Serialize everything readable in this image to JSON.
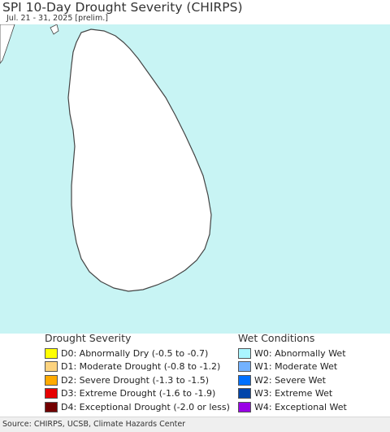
{
  "title": "SPI 10-Day Drought Severity (CHIRPS)",
  "subtitle": "Jul. 21 - 31, 2025 [prelim.]",
  "map": {
    "region": "Sri Lanka",
    "colors": {
      "sea": "#c8f4f4",
      "land": "#ffffff",
      "outline": "#444444",
      "district_border": "#888888",
      "neighbor_land": "#ffffff"
    }
  },
  "drought_legend": {
    "heading": "Drought Severity",
    "items": [
      {
        "label": "D0: Abnormally Dry (-0.5 to -0.7)",
        "color": "#ffff00"
      },
      {
        "label": "D1: Moderate Drought (-0.8 to -1.2)",
        "color": "#fcd37f"
      },
      {
        "label": "D2: Severe Drought (-1.3 to -1.5)",
        "color": "#ffaa00"
      },
      {
        "label": "D3: Extreme Drought (-1.6 to -1.9)",
        "color": "#e60000"
      },
      {
        "label": "D4: Exceptional Drought (-2.0 or less)",
        "color": "#730000"
      }
    ]
  },
  "wet_legend": {
    "heading": "Wet Conditions",
    "items": [
      {
        "label": "W0: Abnormally Wet",
        "color": "#aaf5ff"
      },
      {
        "label": "W1: Moderate Wet",
        "color": "#73b2ff"
      },
      {
        "label": "W2: Severe Wet",
        "color": "#0070ff"
      },
      {
        "label": "W3: Extreme Wet",
        "color": "#0044aa"
      },
      {
        "label": "W4: Exceptional Wet",
        "color": "#9900e6"
      }
    ]
  },
  "source": "Source: CHIRPS, UCSB, Climate Hazards Center"
}
